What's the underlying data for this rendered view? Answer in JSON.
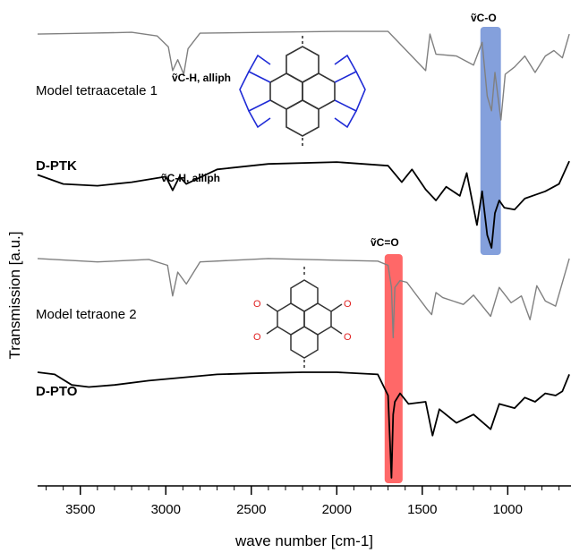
{
  "chart_data": {
    "type": "line",
    "xlabel": "wave number [cm-1]",
    "ylabel": "Transmission [a.u.]",
    "xlim": [
      3750,
      630
    ],
    "x_reversed": true,
    "xticks": [
      3500,
      3000,
      2500,
      2000,
      1500,
      1000
    ],
    "tick_labels": [
      "3500",
      "3000",
      "2500",
      "2000",
      "1500",
      "1000"
    ],
    "series": [
      {
        "name": "Model tetraacetale 1",
        "color": "#808080",
        "x": [
          3750,
          3450,
          3200,
          3050,
          2985,
          2960,
          2930,
          2895,
          2870,
          2800,
          2400,
          2000,
          1700,
          1480,
          1455,
          1420,
          1300,
          1200,
          1150,
          1120,
          1095,
          1075,
          1040,
          1015,
          960,
          900,
          840,
          780,
          730,
          680,
          640
        ],
        "y": [
          0.06,
          0.05,
          0.04,
          0.08,
          0.2,
          0.46,
          0.34,
          0.5,
          0.22,
          0.05,
          0.04,
          0.03,
          0.03,
          0.46,
          0.06,
          0.28,
          0.3,
          0.4,
          0.15,
          0.74,
          0.9,
          0.48,
          1.0,
          0.5,
          0.42,
          0.3,
          0.48,
          0.3,
          0.24,
          0.32,
          0.06
        ]
      },
      {
        "name": "D-PTK",
        "color": "#000000",
        "x": [
          3750,
          3600,
          3400,
          3200,
          3000,
          2960,
          2920,
          2880,
          2700,
          2400,
          2000,
          1700,
          1620,
          1560,
          1480,
          1420,
          1360,
          1280,
          1240,
          1180,
          1150,
          1120,
          1095,
          1075,
          1050,
          1020,
          960,
          900,
          840,
          780,
          700,
          640
        ],
        "y": [
          0.2,
          0.3,
          0.32,
          0.28,
          0.22,
          0.37,
          0.22,
          0.3,
          0.14,
          0.08,
          0.06,
          0.1,
          0.28,
          0.14,
          0.36,
          0.48,
          0.33,
          0.43,
          0.18,
          0.75,
          0.38,
          0.86,
          1.0,
          0.62,
          0.48,
          0.56,
          0.58,
          0.46,
          0.42,
          0.38,
          0.3,
          0.05
        ]
      },
      {
        "name": "Model tetraone 2",
        "color": "#808080",
        "x": [
          3750,
          3400,
          3100,
          2990,
          2960,
          2930,
          2880,
          2800,
          2400,
          2000,
          1760,
          1700,
          1680,
          1670,
          1660,
          1630,
          1590,
          1470,
          1445,
          1420,
          1380,
          1260,
          1200,
          1100,
          1050,
          980,
          920,
          870,
          830,
          780,
          720,
          640
        ],
        "y": [
          0.02,
          0.06,
          0.03,
          0.1,
          0.46,
          0.18,
          0.32,
          0.06,
          0.02,
          0.04,
          0.05,
          0.1,
          0.36,
          0.95,
          0.36,
          0.28,
          0.3,
          0.62,
          0.68,
          0.42,
          0.48,
          0.56,
          0.45,
          0.7,
          0.36,
          0.54,
          0.46,
          0.74,
          0.34,
          0.52,
          0.58,
          0.02
        ]
      },
      {
        "name": "D-PTO",
        "color": "#000000",
        "x": [
          3750,
          3650,
          3550,
          3450,
          3300,
          3100,
          2900,
          2700,
          2500,
          2200,
          2000,
          1760,
          1700,
          1680,
          1670,
          1660,
          1630,
          1580,
          1480,
          1440,
          1400,
          1300,
          1200,
          1100,
          1050,
          960,
          900,
          840,
          780,
          720,
          680,
          640
        ],
        "y": [
          0.0,
          0.02,
          0.12,
          0.14,
          0.12,
          0.08,
          0.05,
          0.02,
          0.01,
          0.0,
          0.0,
          0.02,
          0.22,
          1.0,
          0.4,
          0.28,
          0.2,
          0.3,
          0.28,
          0.6,
          0.35,
          0.48,
          0.4,
          0.54,
          0.3,
          0.34,
          0.24,
          0.28,
          0.2,
          0.22,
          0.18,
          0.02
        ]
      }
    ],
    "highlights": [
      {
        "label": "ṽC-O",
        "x_range": [
          1160,
          1040
        ],
        "color": "#6f8fd6"
      },
      {
        "label": "ṽC=O",
        "x_range": [
          1720,
          1615
        ],
        "color": "#ff4d4d"
      }
    ],
    "annotations": [
      {
        "text": "ṽC-H, alliph"
      },
      {
        "text": "ṽC-H, alliph"
      }
    ]
  }
}
